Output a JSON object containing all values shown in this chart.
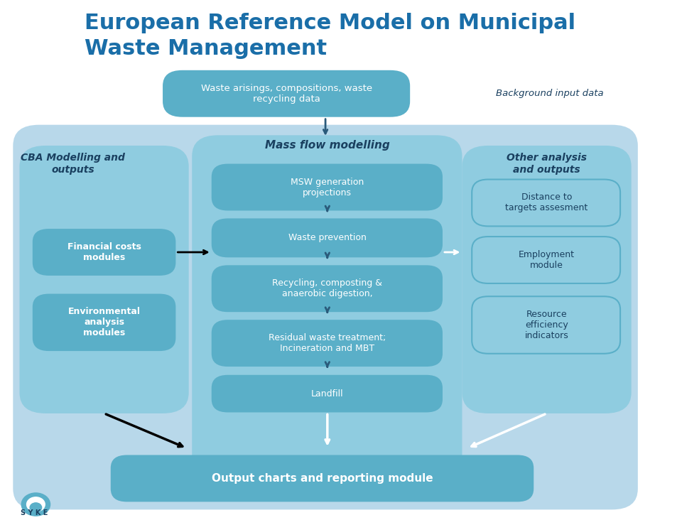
{
  "title_line1": "European Reference Model on Municipal",
  "title_line2": "Waste Management",
  "title_color": "#1a6ea8",
  "title_fontsize": 22,
  "bg_color": "#ffffff",
  "outer_bg_color": "#b8d8ea",
  "inner_panel_color": "#8fcce0",
  "box_color_dark": "#5aafc8",
  "text_color_white": "#ffffff",
  "text_color_dark": "#1a4060",
  "syke_text": "S Y K E",
  "title_text": "European Reference Model on Municipal\nWaste Management",
  "top_box_text": "Waste arisings, compositions, waste\nrecycling data",
  "bg_input_text": "Background input data",
  "mass_flow_label": "Mass flow modelling",
  "msw_text": "MSW generation\nprojections",
  "waste_prev_text": "Waste prevention",
  "recycling_text": "Recycling, composting &\nanaerobic digestion,",
  "residual_text": "Residual waste treatment;\nIncineration and MBT",
  "landfill_text": "Landfill",
  "cba_label": "CBA Modelling and\noutputs",
  "fin_costs_text": "Financial costs\nmodules",
  "env_analysis_text": "Environmental\nanalysis\nmodules",
  "other_label": "Other analysis\nand outputs",
  "dist_text": "Distance to\ntargets assesment",
  "employ_text": "Employment\nmodule",
  "resource_text": "Resource\nefficiency\nindicators",
  "output_text": "Output charts and reporting module"
}
